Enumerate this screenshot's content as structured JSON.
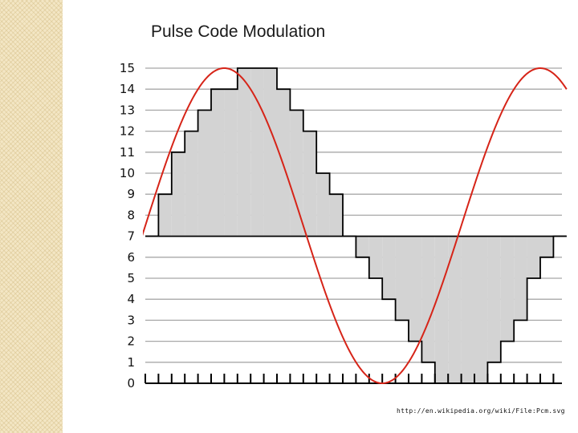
{
  "slide": {
    "title": "Pulse Code Modulation",
    "source_note": "http://en.wikipedia.org/wiki/File:Pcm.svg"
  },
  "colors": {
    "signal": "#d62418",
    "steps": "#000000",
    "fill": "#d3d3d3",
    "grid": "#a8a8a8",
    "side_band": "#f3e6c4"
  },
  "chart_data": {
    "type": "line",
    "title": "Pulse Code Modulation",
    "xlabel": "",
    "ylabel": "",
    "ylim": [
      0,
      15
    ],
    "xlim": [
      0,
      32
    ],
    "y_tick_labels": [
      "0",
      "1",
      "2",
      "3",
      "4",
      "5",
      "6",
      "7",
      "8",
      "9",
      "10",
      "11",
      "12",
      "13",
      "14",
      "15"
    ],
    "x_tick_count": 32,
    "grid": true,
    "baseline": 7,
    "series": [
      {
        "kind": "sampled-steps",
        "x": [
          0,
          1,
          2,
          3,
          4,
          5,
          6,
          7,
          8,
          9,
          10,
          11,
          12,
          13,
          14,
          15,
          16,
          17,
          18,
          19,
          20,
          21,
          22,
          23,
          24,
          25,
          26,
          27,
          28,
          29,
          30,
          31
        ],
        "values": [
          7,
          9,
          11,
          12,
          13,
          14,
          14,
          15,
          15,
          15,
          14,
          13,
          12,
          10,
          9,
          7,
          6,
          5,
          4,
          3,
          2,
          1,
          0,
          0,
          0,
          0,
          1,
          2,
          3,
          5,
          6,
          7
        ]
      },
      {
        "kind": "analog-signal",
        "signal": "sine",
        "period": 24,
        "offset": 7.5,
        "amplitude": 7.5,
        "x_range": [
          -1,
          32
        ]
      }
    ]
  }
}
